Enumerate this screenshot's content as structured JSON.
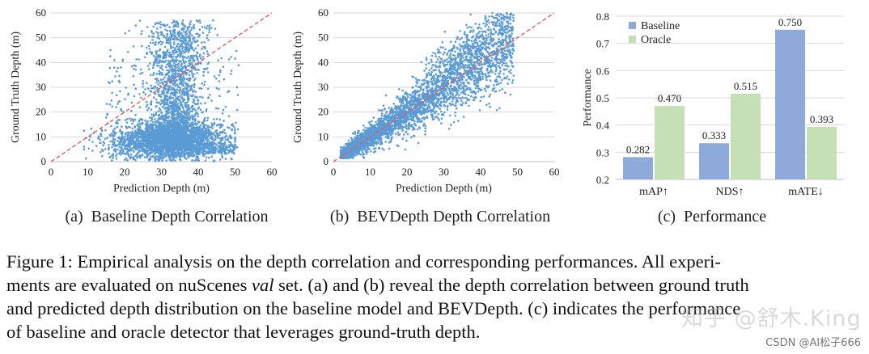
{
  "chart_data": [
    {
      "type": "scatter",
      "id": "a",
      "title": "",
      "xlabel": "Prediction Depth (m)",
      "ylabel": "Ground Truth Depth (m)",
      "xlim": [
        0,
        60
      ],
      "ylim": [
        0,
        60
      ],
      "xticks": [
        0,
        10,
        20,
        30,
        40,
        50,
        60
      ],
      "yticks": [
        0,
        10,
        20,
        30,
        40,
        50,
        60
      ],
      "reference_line": "y = x (dashed red)",
      "subcaption": "(a)  Baseline Depth Correlation",
      "distribution": [
        {
          "component": "dense band",
          "x_range": [
            10,
            50
          ],
          "x_center": 30,
          "y_center": 8,
          "y_spread": 4
        },
        {
          "component": "vertical column",
          "x_center": 34,
          "x_spread": 3,
          "y_range": [
            10,
            57
          ]
        },
        {
          "component": "scattered tail",
          "x_range": [
            15,
            50
          ],
          "y_range": [
            0,
            45
          ]
        }
      ],
      "series": [
        {
          "name": "sample points",
          "x": [
            8,
            12,
            16,
            20,
            24,
            28,
            30,
            33,
            36,
            40,
            44,
            48,
            34,
            35,
            33,
            36,
            34,
            32,
            37,
            35,
            22,
            45
          ],
          "y": [
            10,
            9,
            8,
            7,
            9,
            10,
            8,
            6,
            9,
            8,
            6,
            5,
            20,
            30,
            40,
            50,
            56,
            25,
            35,
            45,
            15,
            20
          ]
        }
      ]
    },
    {
      "type": "scatter",
      "id": "b",
      "title": "",
      "xlabel": "Prediction Depth (m)",
      "ylabel": "Ground Truth Depth (m)",
      "xlim": [
        0,
        60
      ],
      "ylim": [
        0,
        60
      ],
      "xticks": [
        0,
        10,
        20,
        30,
        40,
        50,
        60
      ],
      "yticks": [
        0,
        10,
        20,
        30,
        40,
        50,
        60
      ],
      "reference_line": "y = x (dashed red)",
      "subcaption": "(b)  BEVDepth Depth Correlation",
      "distribution": [
        {
          "component": "diagonal band",
          "x_range": [
            2,
            50
          ],
          "relation": "y ≈ x",
          "spread_grows_with_x": true
        }
      ],
      "series": [
        {
          "name": "sample points",
          "x": [
            3,
            5,
            8,
            10,
            12,
            15,
            18,
            20,
            25,
            30,
            35,
            40,
            45,
            48
          ],
          "y": [
            3,
            5,
            7,
            11,
            12,
            14,
            19,
            22,
            24,
            31,
            33,
            42,
            48,
            55
          ]
        }
      ]
    },
    {
      "type": "bar",
      "id": "c",
      "categories": [
        "mAP↑",
        "NDS↑",
        "mATE↓"
      ],
      "series": [
        {
          "name": "Baseline",
          "values": [
            0.282,
            0.333,
            0.75
          ],
          "color": "#8eaadb"
        },
        {
          "name": "Oracle",
          "values": [
            0.47,
            0.515,
            0.393
          ],
          "color": "#c5e0b4"
        }
      ],
      "value_labels": [
        [
          "0.282",
          "0.333",
          "0.750"
        ],
        [
          "0.470",
          "0.515",
          "0.393"
        ]
      ],
      "xlabel": "",
      "ylabel": "Performance",
      "ylim": [
        0.2,
        0.8
      ],
      "yticks": [
        "0.2",
        "0.3",
        "0.4",
        "0.5",
        "0.6",
        "0.7",
        "0.8"
      ],
      "legend": "top-left",
      "subcaption": "(c)  Performance"
    }
  ],
  "colors": {
    "point": "#5b9bd5",
    "ref_line": "#e06060",
    "grid": "#d9d9d9",
    "baseline": "#8eaadb",
    "oracle": "#c5e0b4"
  },
  "caption": {
    "line1": "Figure 1: Empirical analysis on the depth correlation and corresponding performances. All experi-",
    "line2_pre": "ments are evaluated on nuScenes ",
    "line2_em": "val",
    "line2_post": " set. (a) and (b) reveal the depth correlation between ground truth",
    "line3": "and predicted depth distribution on the baseline model and BEVDepth. (c) indicates the performance",
    "line4": "of baseline and oracle detector that leverages ground-truth depth."
  },
  "watermark": {
    "main": "知乎 @舒木.King",
    "corner": "CSDN @AI松子666"
  }
}
